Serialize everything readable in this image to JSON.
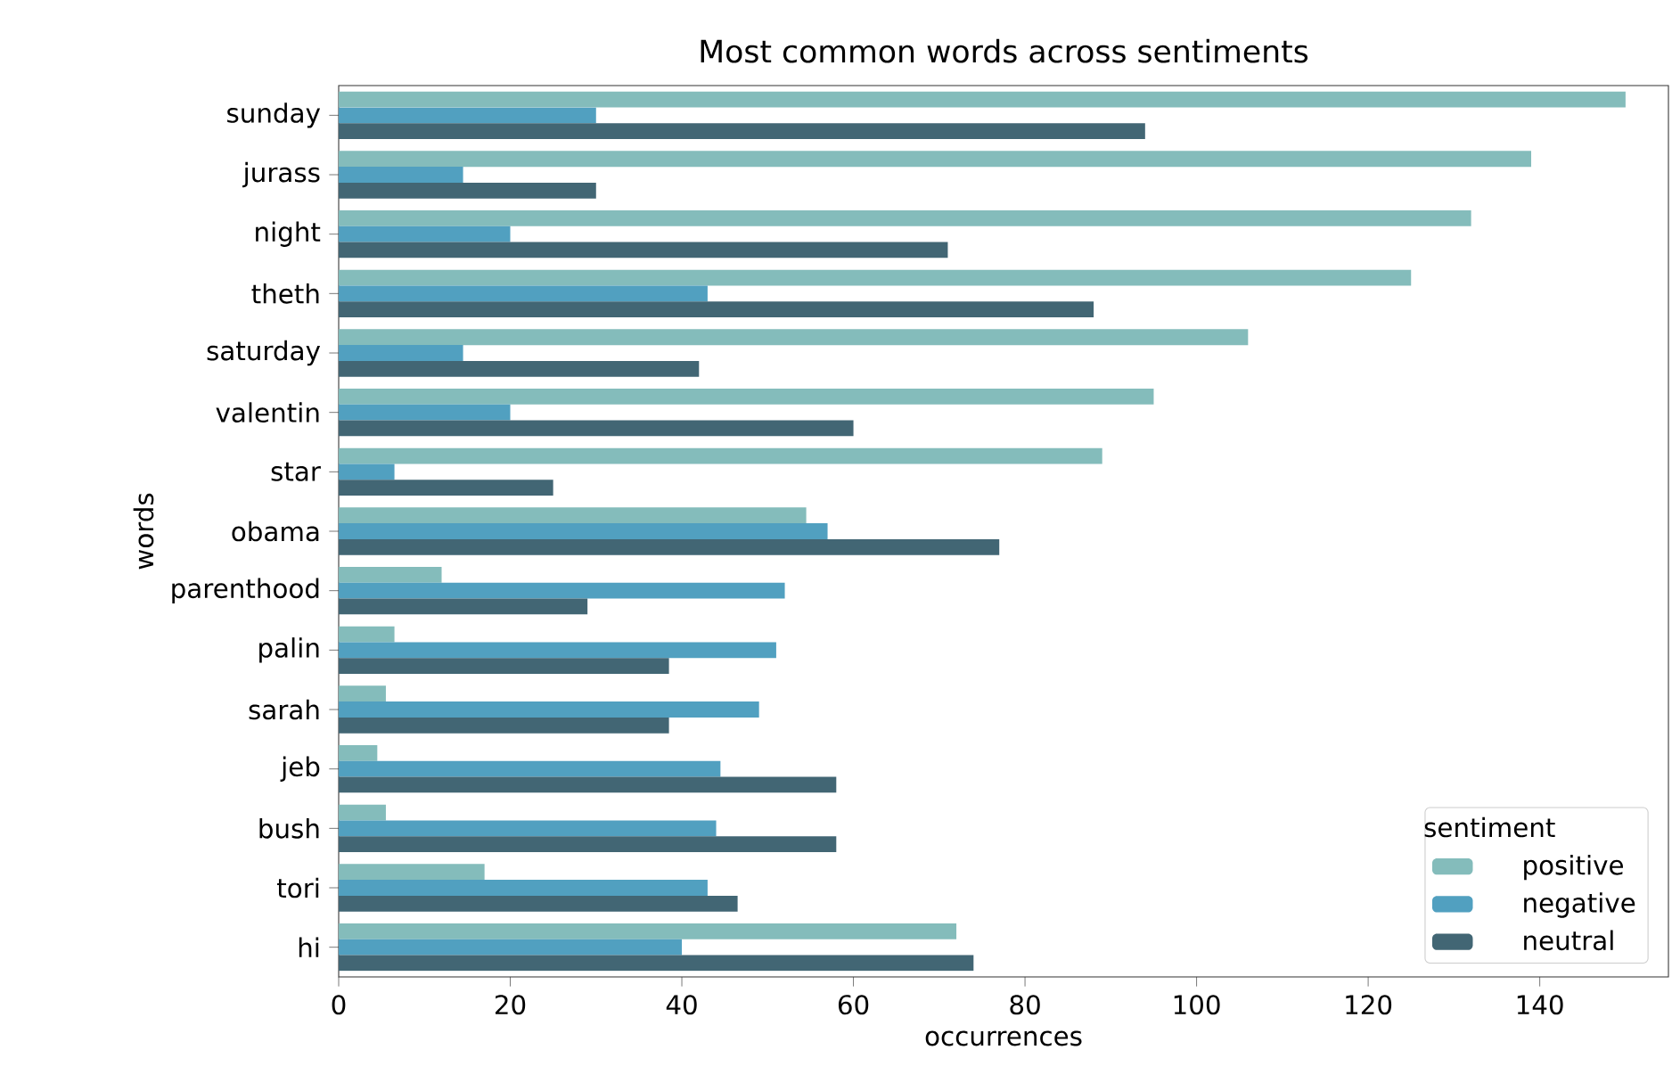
{
  "chart_data": {
    "type": "bar",
    "orientation": "horizontal",
    "title": "Most common words across sentiments",
    "xlabel": "occurrences",
    "ylabel": "words",
    "categories": [
      "sunday",
      "jurass",
      "night",
      "theth",
      "saturday",
      "valentin",
      "star",
      "obama",
      "parenthood",
      "palin",
      "sarah",
      "jeb",
      "bush",
      "tori",
      "hi"
    ],
    "series": [
      {
        "name": "positive",
        "color": "#84bcbb",
        "values": [
          150,
          139,
          132,
          125,
          106,
          95,
          89,
          54.5,
          12,
          6.5,
          5.5,
          4.5,
          5.5,
          17,
          72
        ]
      },
      {
        "name": "negative",
        "color": "#51a0c0",
        "values": [
          30,
          14.5,
          20,
          43,
          14.5,
          20,
          6.5,
          57,
          52,
          51,
          49,
          44.5,
          44,
          43,
          40
        ]
      },
      {
        "name": "neutral",
        "color": "#426674",
        "values": [
          94,
          30,
          71,
          88,
          42,
          60,
          25,
          77,
          29,
          38.5,
          38.5,
          58,
          58,
          46.5,
          74
        ]
      }
    ],
    "legend_title": "sentiment",
    "legend": "bottom right",
    "xlim": [
      0,
      155
    ],
    "xticks": [
      0,
      20,
      40,
      60,
      80,
      100,
      120,
      140
    ],
    "grid": false
  }
}
